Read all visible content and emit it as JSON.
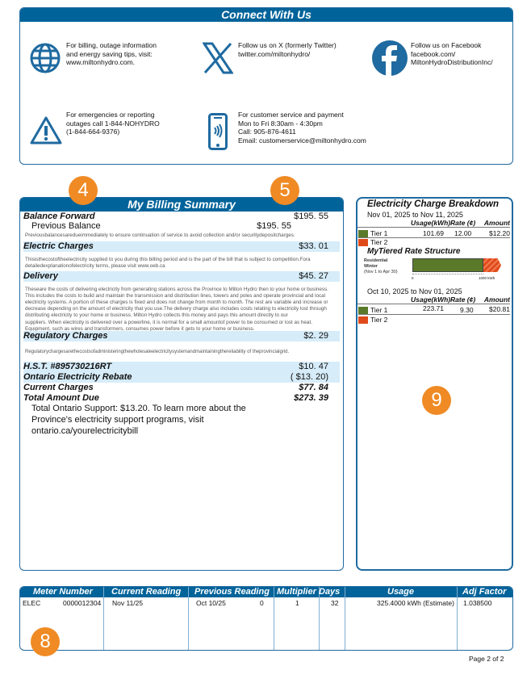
{
  "connect": {
    "title": "Connect With Us",
    "items": [
      {
        "icon": "globe-icon",
        "lines": [
          "For billing, outage information",
          "and energy saving tips, visit:",
          "www.miltonhydro.com."
        ]
      },
      {
        "icon": "x-logo-icon",
        "lines": [
          "Follow us on X (formerly Twitter)",
          "twitter.com/miltonhydro/"
        ]
      },
      {
        "icon": "facebook-icon",
        "lines": [
          "Follow us on Facebook",
          "facebook.com/",
          "MiltonHydroDistributionInc/"
        ]
      },
      {
        "icon": "warning-icon",
        "lines": [
          "For emergencies or reporting",
          "outages call 1-844-NOHYDRO",
          "(1-844-664-9376)"
        ]
      },
      {
        "icon": "phone-icon",
        "lines": [
          "For customer service and payment",
          "Mon to Fri 8:30am - 4:30pm",
          "Call: 905-876-4611",
          "Email: customerservice@miltonhydro.com"
        ]
      }
    ]
  },
  "badges": [
    "4",
    "5",
    "9",
    "8"
  ],
  "billing": {
    "title": "My Billing Summary",
    "balance_forward": {
      "label": "Balance Forward",
      "amount": "$195. 55"
    },
    "previous_balance": {
      "label": "Previous Balance",
      "amount": "$195. 55"
    },
    "previous_note": "Previousbalancesaredueimmediately to ensure continuation of service to avoid collection and/or securitydepositcharges.",
    "electric": {
      "label": "Electric Charges",
      "amount": "$33. 01"
    },
    "electric_note": "Thisisthecostoftheelectricity supplied to you during this billing period and is the part of the bill that is subject to competition.Fora detailedexplanationofelectricity terms, please visit www.oeb.ca",
    "delivery": {
      "label": "Delivery",
      "amount": "$45. 27"
    },
    "delivery_note": "Theseare the costs of delivering electricity from generating stations across the Province to Milton Hydro then to your home or business. This includes the costs to build and maintain the transmission and distribution lines, towers and poles and operate provincial and local electricity systems. A portion of these charges is fixed and does not change from month to month. The rest are variable and increase or decrease depending on the amount of electricity that you use.The delivery charge also includes costs relating to electricity lost through distributing electricity to your home or business. Milton Hydro collects this money and pays this amount directly to our",
    "delivery_note2": "suppliers. When electricity is delivered over a powerline, it is normal for a small amountof power to be consumed or lost as heat. Equipment, such as wires and transformers, consumes power before it gets to your home or business.",
    "regulatory": {
      "label": "Regulatory Charges",
      "amount": "$2. 29"
    },
    "regulatory_note": "Regulatorychargesarethecostsofadministeringthewholesaleelectricitysystemandmaintainingthereliability of theprovincialgrid.",
    "hst": {
      "label": "H.S.T. #895730216RT",
      "amount": "$10. 47"
    },
    "rebate": {
      "label": "Ontario Electricity Rebate",
      "amount": "( $13. 20)"
    },
    "current": {
      "label": "Current Charges",
      "amount": "$77. 84"
    },
    "total": {
      "label": "Total Amount Due",
      "amount": "$273. 39"
    },
    "support_note": "Total Ontario Support: $13.20. To learn more about the Province's electricity support programs, visit ontario.ca/yourelectricitybill"
  },
  "breakdown": {
    "title": "Electricity Charge Breakdown",
    "headers": {
      "usage": "Usage(kWh)",
      "rate": "Rate (¢)",
      "amount": "Amount"
    },
    "periods": [
      {
        "range": "Nov 01, 2025 to Nov 11, 2025",
        "tiers": [
          {
            "name": "Tier 1",
            "usage": "101.69",
            "rate": "12.00",
            "amount": "$12.20"
          },
          {
            "name": "Tier 2",
            "usage": "",
            "rate": "",
            "amount": ""
          }
        ]
      },
      {
        "range": "Oct 10, 2025 to Nov 01, 2025",
        "tiers": [
          {
            "name": "Tier 1",
            "usage": "223.71",
            "rate": "9.30",
            "amount": "$20.81"
          },
          {
            "name": "Tier 2",
            "usage": "",
            "rate": "",
            "amount": ""
          }
        ]
      }
    ],
    "tier_colors": {
      "tier1": "#5a7a2a",
      "tier2": "#e04a1a"
    },
    "rate_structure": {
      "title": "MyTiered Rate Structure",
      "label1": "Residential",
      "label2": "Winter",
      "label3": "(Nov 1 to Apr 30)",
      "axis_start": "0",
      "axis_end": "1000 kWh"
    }
  },
  "meter": {
    "headers": [
      "Meter Number",
      "Current Reading",
      "Previous Reading",
      "Multiplier",
      "Days",
      "Usage",
      "Adj Factor"
    ],
    "row": {
      "type": "ELEC",
      "number": "0000012304",
      "current": "Nov 11/25",
      "previous": "Oct 10/25",
      "previous_value": "0",
      "multiplier": "1",
      "days": "32",
      "usage": "325.4000 kWh (Estimate)",
      "adj": "1.038500"
    }
  },
  "page": "Page 2 of 2"
}
